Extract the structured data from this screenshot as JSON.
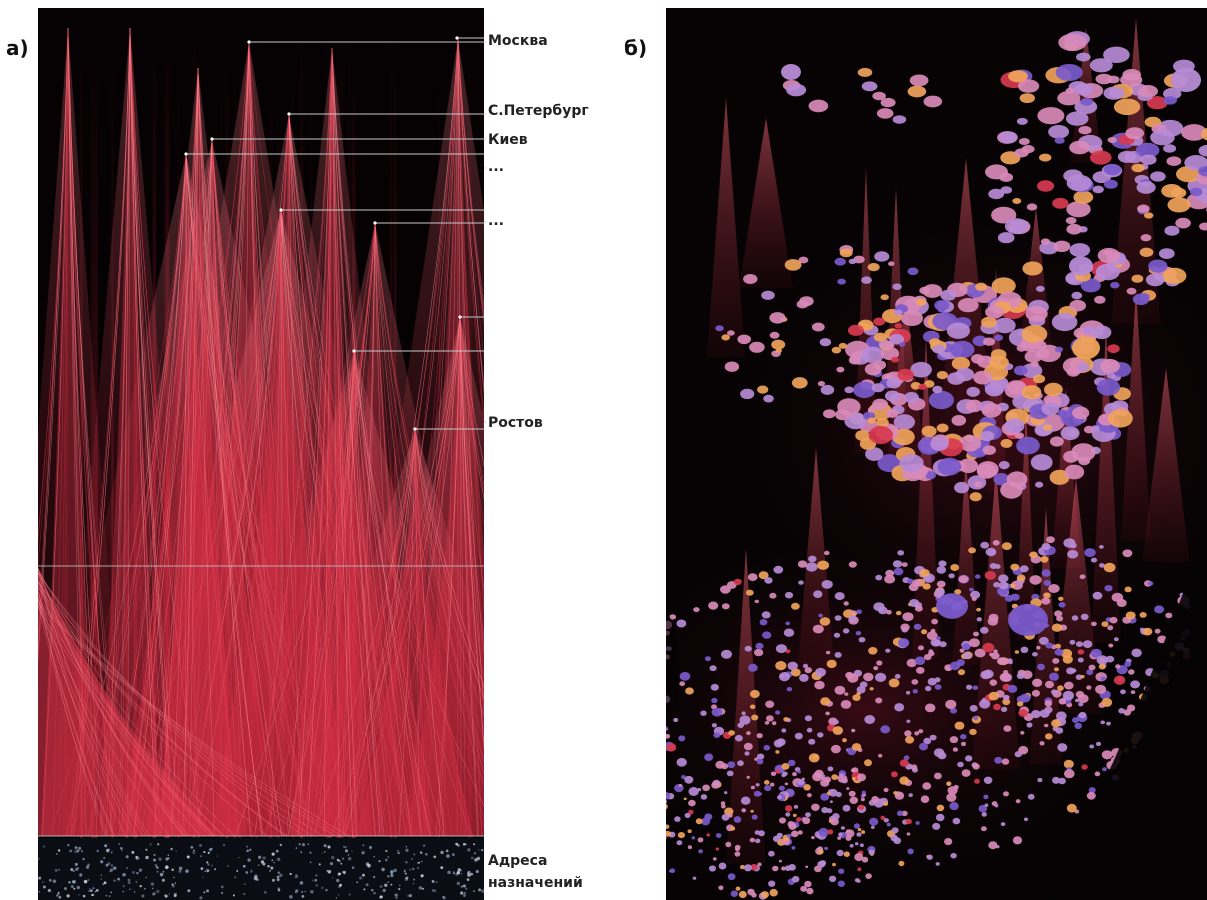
{
  "panels": {
    "a": {
      "letter": "а)"
    },
    "b": {
      "letter": "б)"
    }
  },
  "labels": {
    "moscow": "Москва",
    "spb": "С.Петербург",
    "kiev": "Киев",
    "dots1": "...",
    "dots2": "...",
    "rostov": "Ростов",
    "destinations": "Адреса назначений"
  },
  "colors": {
    "background": "#050202",
    "fan_red": "#e0344a",
    "fan_pink": "#ff8a95",
    "guide_line": "#c8c8c8",
    "node_orange": "#f0a35a",
    "node_lavender": "#b78bd6",
    "node_purple": "#7a5acb",
    "node_pink": "#d98ab8",
    "node_red": "#d83a50"
  }
}
